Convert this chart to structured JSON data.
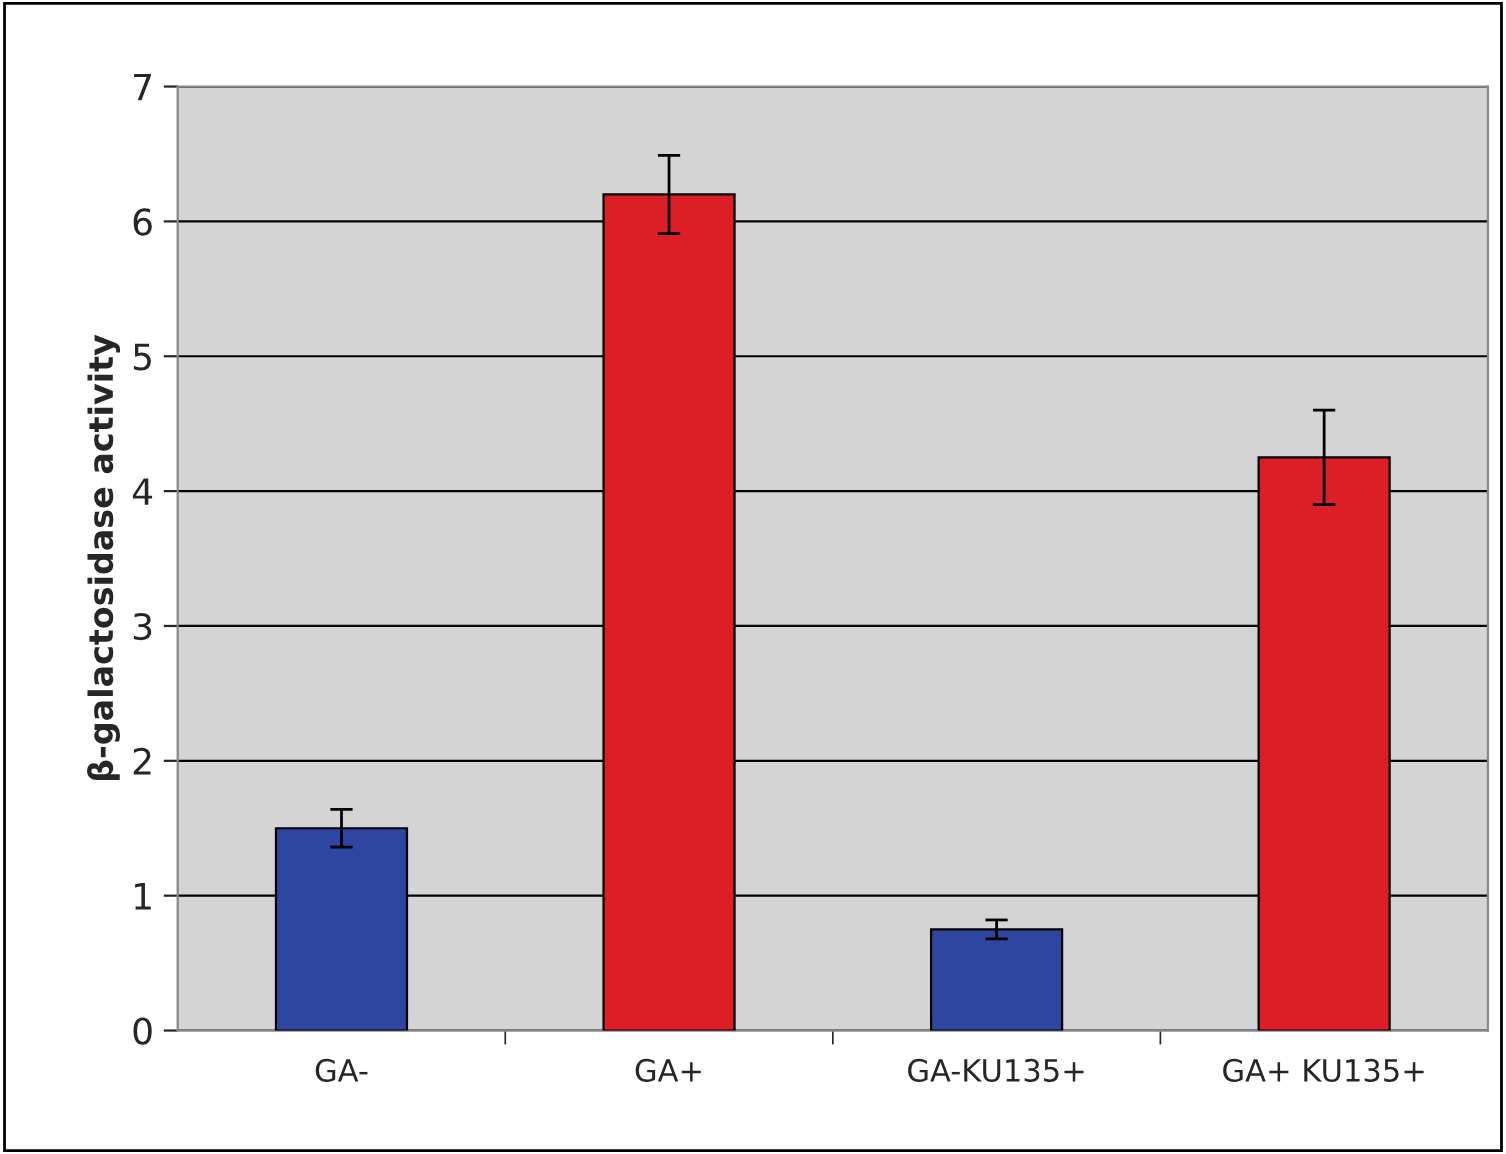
{
  "chart_data": {
    "type": "bar",
    "ylabel": "β-galactosidase activity",
    "categories": [
      "GA-",
      "GA+",
      "GA-KU135+",
      "GA+ KU135+"
    ],
    "values": [
      1.5,
      6.2,
      0.75,
      4.25
    ],
    "colors": [
      "#2e46a0",
      "#dc1f26",
      "#2e46a0",
      "#dc1f26"
    ],
    "errors": [
      0.14,
      0.29,
      0.07,
      0.35
    ],
    "ylim": [
      0,
      7
    ],
    "yticks": [
      0,
      1,
      2,
      3,
      4,
      5,
      6,
      7
    ],
    "grid": "y",
    "legend": false
  }
}
